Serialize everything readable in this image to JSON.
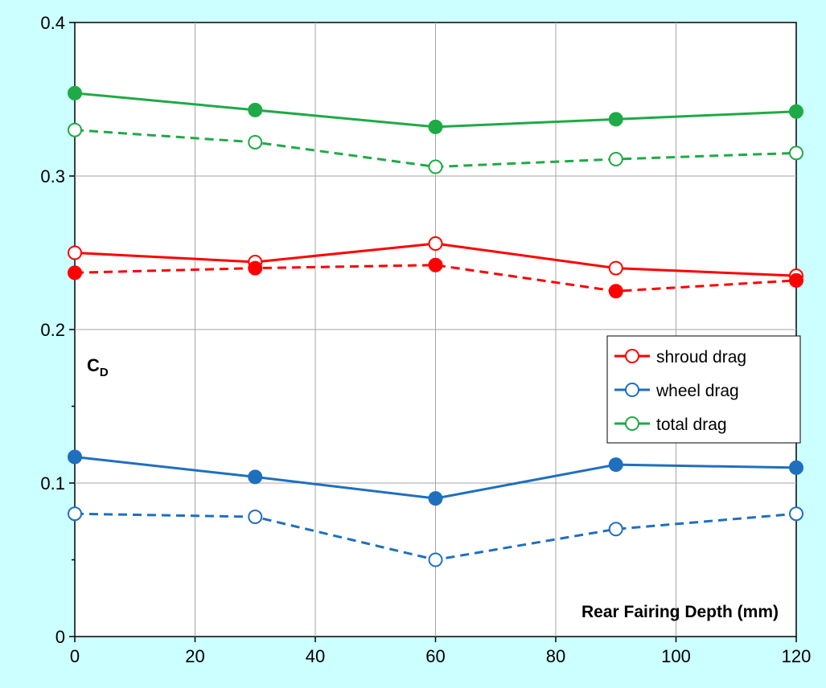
{
  "chart_data": {
    "type": "line",
    "xlabel": "Rear Fairing Depth (mm)",
    "ylabel": "C",
    "ylabel_sub": "D",
    "xlim": [
      0,
      120
    ],
    "ylim": [
      0,
      0.4
    ],
    "xticks": [
      0,
      20,
      40,
      60,
      80,
      100,
      120
    ],
    "xtick_labels": [
      "0",
      "20",
      "40",
      "60",
      "80",
      "100",
      "120"
    ],
    "yticks": [
      0,
      0.1,
      0.2,
      0.3,
      0.4
    ],
    "ytick_labels": [
      "0",
      "0.1",
      "0.2",
      "0.3",
      "0.4"
    ],
    "grid": true,
    "legend_position": "right",
    "legend": [
      {
        "label": "shroud drag",
        "color": "#ff0000"
      },
      {
        "label": "wheel drag",
        "color": "#1f6fbf"
      },
      {
        "label": "total drag",
        "color": "#1eaa46"
      }
    ],
    "series": [
      {
        "color": "#1eaa46",
        "style": "solid",
        "marker": "filled",
        "x": [
          0,
          30,
          60,
          90,
          120
        ],
        "y": [
          0.354,
          0.343,
          0.332,
          0.337,
          0.342
        ]
      },
      {
        "color": "#1eaa46",
        "style": "dashed",
        "marker": "open",
        "x": [
          0,
          30,
          60,
          90,
          120
        ],
        "y": [
          0.33,
          0.322,
          0.306,
          0.311,
          0.315
        ]
      },
      {
        "color": "#ff0000",
        "style": "solid",
        "marker": "open",
        "x": [
          0,
          30,
          60,
          90,
          120
        ],
        "y": [
          0.25,
          0.244,
          0.256,
          0.24,
          0.235
        ]
      },
      {
        "color": "#ff0000",
        "style": "dashed",
        "marker": "filled",
        "x": [
          0,
          30,
          60,
          90,
          120
        ],
        "y": [
          0.237,
          0.24,
          0.242,
          0.225,
          0.232
        ]
      },
      {
        "color": "#1f6fbf",
        "style": "solid",
        "marker": "filled",
        "x": [
          0,
          30,
          60,
          90,
          120
        ],
        "y": [
          0.117,
          0.104,
          0.09,
          0.112,
          0.11
        ]
      },
      {
        "color": "#1f6fbf",
        "style": "dashed",
        "marker": "open",
        "x": [
          0,
          30,
          60,
          90,
          120
        ],
        "y": [
          0.08,
          0.078,
          0.05,
          0.07,
          0.08
        ]
      }
    ]
  }
}
